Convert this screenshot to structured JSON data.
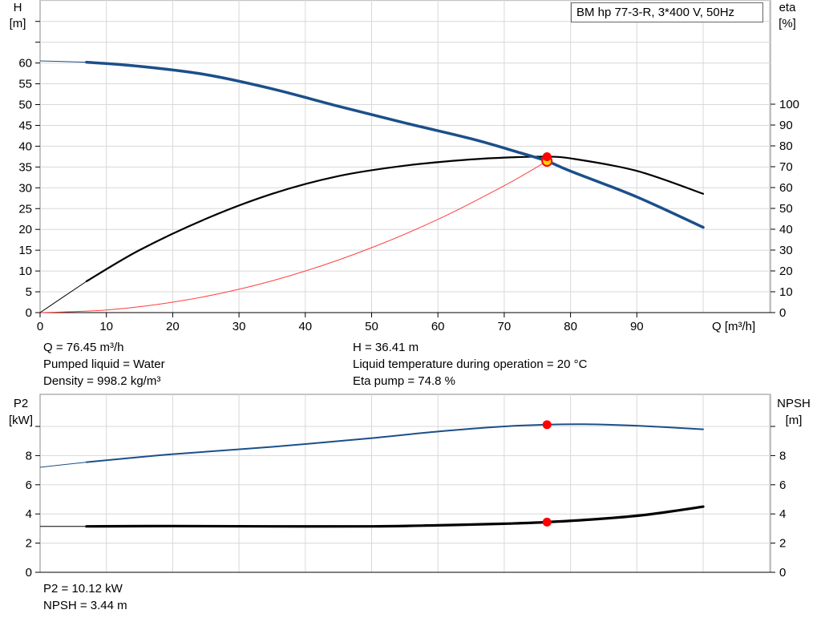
{
  "legend": "BM hp 77-3-R, 3*400 V, 50Hz",
  "info_top": {
    "q": "Q = 76.45 m³/h",
    "liquid": "Pumped liquid = Water",
    "density": "Density = 998.2 kg/m³",
    "h": "H = 36.41 m",
    "temp": "Liquid temperature during operation = 20 °C",
    "eta": "Eta pump = 74.8 %"
  },
  "info_bottom": {
    "p2": "P2 = 10.12 kW",
    "npsh": "NPSH = 3.44 m"
  },
  "colors": {
    "head": "#1b4f8a",
    "eta": "#000000",
    "system": "#ff4040",
    "p2": "#1b4f8a",
    "npsh": "#000000",
    "point": "#ff0000",
    "point_fill": "#ffd400",
    "grid": "#d8d8d8"
  },
  "chart_data": [
    {
      "type": "line",
      "x_axis": {
        "label": "Q [m³/h]",
        "range": [
          0,
          100
        ],
        "ticks": [
          0,
          10,
          20,
          30,
          40,
          50,
          60,
          70,
          80,
          90
        ]
      },
      "y_axis_left": {
        "label_line1": "H",
        "label_line2": "[m]",
        "range": [
          0,
          60
        ],
        "ticks": [
          0,
          5,
          10,
          15,
          20,
          25,
          30,
          35,
          40,
          45,
          50,
          55,
          60
        ]
      },
      "y_axis_right": {
        "label_line1": "eta",
        "label_line2": "[%]",
        "range": [
          0,
          100
        ],
        "ticks": [
          0,
          10,
          20,
          30,
          40,
          50,
          60,
          70,
          80,
          90,
          100
        ]
      },
      "grid": true,
      "series": [
        {
          "id": "head",
          "axis": "left",
          "x": [
            0,
            7,
            15,
            25,
            35,
            45,
            55,
            65,
            72,
            76.45,
            80,
            90,
            100
          ],
          "y": [
            60.5,
            60.2,
            59.2,
            57.2,
            53.8,
            49.6,
            45.6,
            41.8,
            38.6,
            36.41,
            34.0,
            27.8,
            20.5
          ]
        },
        {
          "id": "eta",
          "axis": "right",
          "x": [
            0,
            7,
            15,
            25,
            35,
            45,
            55,
            65,
            72,
            76.45,
            80,
            90,
            100
          ],
          "y": [
            0,
            15.0,
            30.0,
            45.0,
            57.0,
            65.5,
            70.5,
            73.5,
            74.6,
            74.8,
            74.0,
            68.0,
            57.0
          ]
        },
        {
          "id": "system",
          "axis": "left",
          "x": [
            0,
            10,
            20,
            30,
            40,
            50,
            60,
            70,
            76.45
          ],
          "y": [
            0,
            0.62,
            2.5,
            5.6,
            10.0,
            15.6,
            22.4,
            30.5,
            36.41
          ]
        }
      ],
      "operating_point": {
        "x": 76.45,
        "h": 36.41,
        "eta": 74.8
      }
    },
    {
      "type": "line",
      "x_axis": {
        "range": [
          0,
          100
        ]
      },
      "y_axis_left": {
        "label_line1": "P2",
        "label_line2": "[kW]",
        "range": [
          0,
          11
        ],
        "ticks": [
          0,
          2,
          4,
          6,
          8
        ]
      },
      "y_axis_right": {
        "label_line1": "NPSH",
        "label_line2": "[m]",
        "range": [
          0,
          11
        ],
        "ticks": [
          0,
          2,
          4,
          6,
          8
        ]
      },
      "grid": true,
      "series": [
        {
          "id": "p2",
          "axis": "left",
          "x": [
            0,
            7,
            20,
            35,
            50,
            60,
            70,
            76.45,
            82,
            90,
            100
          ],
          "y": [
            7.2,
            7.55,
            8.1,
            8.6,
            9.2,
            9.65,
            10.0,
            10.12,
            10.15,
            10.05,
            9.8
          ]
        },
        {
          "id": "npsh",
          "axis": "right",
          "x": [
            0,
            7,
            20,
            35,
            50,
            60,
            70,
            76.45,
            85,
            92,
            100
          ],
          "y": [
            3.15,
            3.15,
            3.17,
            3.15,
            3.15,
            3.22,
            3.33,
            3.44,
            3.68,
            3.98,
            4.5
          ]
        }
      ],
      "operating_point": {
        "x": 76.45,
        "p2": 10.12,
        "npsh": 3.44
      }
    }
  ]
}
